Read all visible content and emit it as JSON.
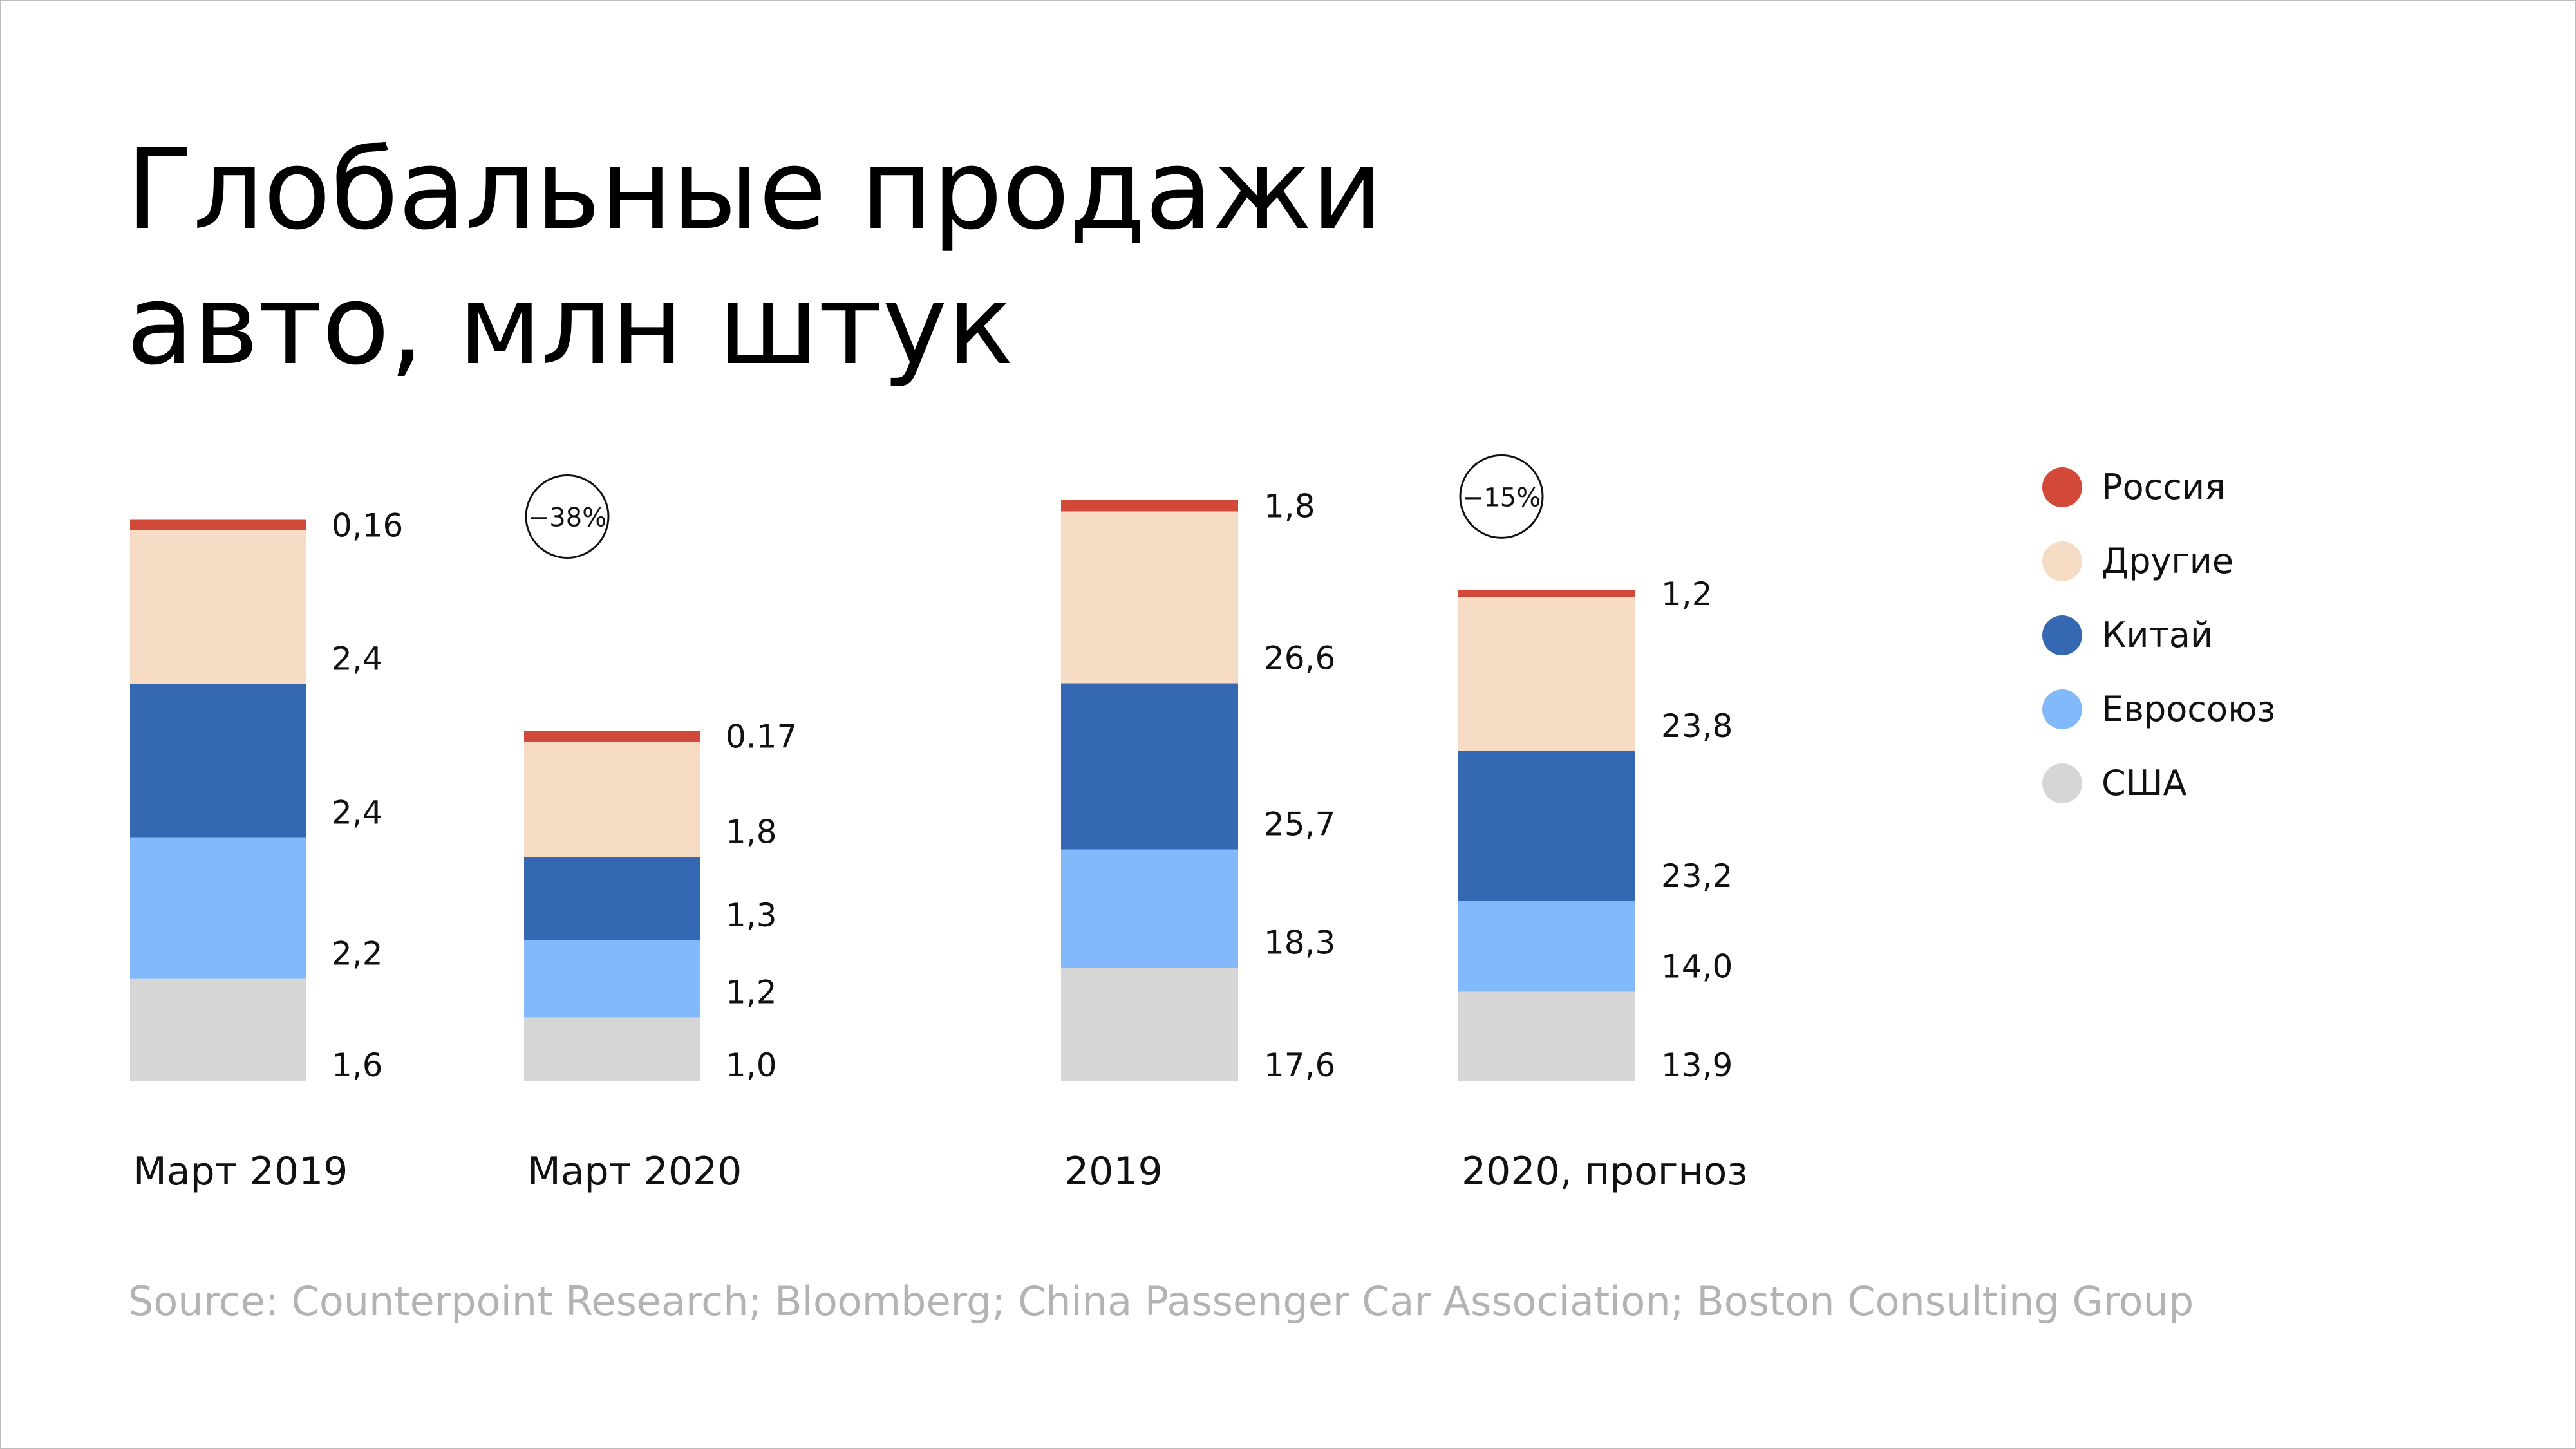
{
  "title": {
    "line1": "Глобальные продажи",
    "line2": "авто, млн штук"
  },
  "source": "Source: Counterpoint Research; Bloomberg; China Passenger Car Association; Boston Consulting Group",
  "legend": [
    {
      "label": "Россия",
      "color": "#d2493a"
    },
    {
      "label": "Другие",
      "color": "#f6dcc4"
    },
    {
      "label": "Китай",
      "color": "#3568b2"
    },
    {
      "label": "Евросоюз",
      "color": "#82b9fa"
    },
    {
      "label": "США",
      "color": "#d6d6d6"
    }
  ],
  "chart_data": [
    {
      "type": "bar",
      "stacked": true,
      "categories": [
        "Март 2019",
        "Март 2020"
      ],
      "series": [
        {
          "name": "США",
          "values": [
            1.6,
            1.0
          ],
          "labels": [
            "1,6",
            "1,0"
          ],
          "color": "#d6d6d6"
        },
        {
          "name": "Евросоюз",
          "values": [
            2.2,
            1.2
          ],
          "labels": [
            "2,2",
            "1,2"
          ],
          "color": "#82b9fa"
        },
        {
          "name": "Китай",
          "values": [
            2.4,
            1.3
          ],
          "labels": [
            "2,4",
            "1,3"
          ],
          "color": "#3568b2"
        },
        {
          "name": "Другие",
          "values": [
            2.4,
            1.8
          ],
          "labels": [
            "2,4",
            "1,8"
          ],
          "color": "#f6dcc4"
        },
        {
          "name": "Россия",
          "values": [
            0.16,
            0.17
          ],
          "labels": [
            "0,16",
            "0.17"
          ],
          "color": "#d2493a"
        }
      ],
      "change_badge": {
        "category": "Март 2020",
        "label": "−38%"
      }
    },
    {
      "type": "bar",
      "stacked": true,
      "categories": [
        "2019",
        "2020, прогноз"
      ],
      "series": [
        {
          "name": "США",
          "values": [
            17.6,
            13.9
          ],
          "labels": [
            "17,6",
            "13,9"
          ],
          "color": "#d6d6d6"
        },
        {
          "name": "Евросоюз",
          "values": [
            18.3,
            14.0
          ],
          "labels": [
            "18,3",
            "14,0"
          ],
          "color": "#82b9fa"
        },
        {
          "name": "Китай",
          "values": [
            25.7,
            23.2
          ],
          "labels": [
            "25,7",
            "23,2"
          ],
          "color": "#3568b2"
        },
        {
          "name": "Другие",
          "values": [
            26.6,
            23.8
          ],
          "labels": [
            "26,6",
            "23,8"
          ],
          "color": "#f6dcc4"
        },
        {
          "name": "Россия",
          "values": [
            1.8,
            1.2
          ],
          "labels": [
            "1,8",
            "1,2"
          ],
          "color": "#d2493a"
        }
      ],
      "change_badge": {
        "category": "2020, прогноз",
        "label": "−15%"
      }
    }
  ]
}
